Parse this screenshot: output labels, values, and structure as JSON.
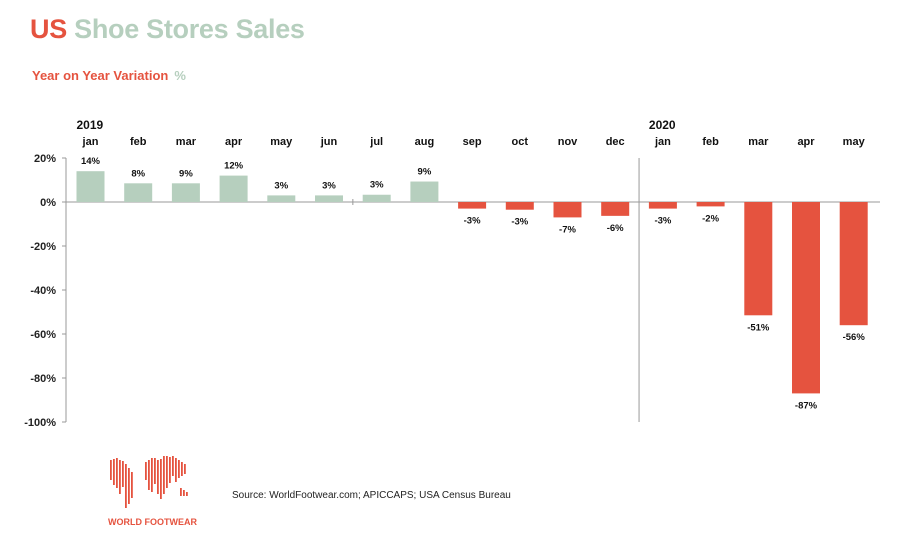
{
  "title": {
    "part1": "US",
    "part2": "Shoe Stores Sales"
  },
  "subtitle": {
    "text": "Year on Year Variation",
    "unit": "%"
  },
  "source": "Source: WorldFootwear.com; APICCAPS; USA Census Bureau",
  "logo": {
    "text": "WORLD FOOTWEAR",
    "icon": "world-map-logo"
  },
  "colors": {
    "positive": "#b6cfbe",
    "negative": "#e5533f",
    "axis": "#999999"
  },
  "chart_data": {
    "type": "bar",
    "years": [
      {
        "label": "2019",
        "start_index": 0
      },
      {
        "label": "2020",
        "start_index": 12
      }
    ],
    "categories": [
      "jan",
      "feb",
      "mar",
      "apr",
      "may",
      "jun",
      "jul",
      "aug",
      "sep",
      "oct",
      "nov",
      "dec",
      "jan",
      "feb",
      "mar",
      "apr",
      "may"
    ],
    "values": [
      14,
      8,
      9,
      12,
      3,
      3,
      3,
      9,
      -3,
      -3,
      -7,
      -6,
      -3,
      -2,
      -51,
      -87,
      -56
    ],
    "data_labels": [
      "14%",
      "8%",
      "9%",
      "12%",
      "3%",
      "3%",
      "3%",
      "9%",
      "-3%",
      "-3%",
      "-7%",
      "-6%",
      "-3%",
      "-2%",
      "-51%",
      "-87%",
      "-56%"
    ],
    "bar_heights": [
      14,
      8.5,
      8.5,
      12,
      3,
      3,
      3.3,
      9.3,
      -3,
      -3.5,
      -7,
      -6.3,
      -3,
      -2,
      -51.5,
      -87,
      -56
    ],
    "y_ticks": [
      {
        "value": 20,
        "label": "20%"
      },
      {
        "value": 0,
        "label": "0%"
      },
      {
        "value": -20,
        "label": "-20%"
      },
      {
        "value": -40,
        "label": "-40%"
      },
      {
        "value": -60,
        "label": "-60%"
      },
      {
        "value": -80,
        "label": "-80%"
      },
      {
        "value": -100,
        "label": "-100%"
      }
    ],
    "ylim": [
      -100,
      20
    ],
    "grid": false,
    "legend": "none"
  }
}
